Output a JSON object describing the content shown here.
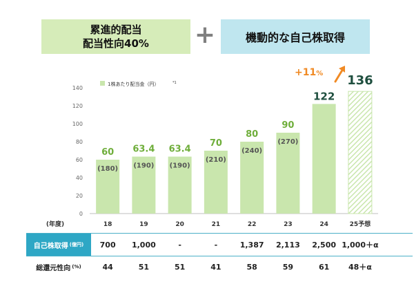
{
  "header": {
    "left_line1": "累進的配当",
    "left_line2": "配当性向40%",
    "plus": "+",
    "right": "機動的な自己株取得"
  },
  "chart_data": {
    "type": "bar",
    "categories": [
      "18",
      "19",
      "20",
      "21",
      "22",
      "23",
      "24",
      "25予想"
    ],
    "series": [
      {
        "name": "1株あたり配当金（円）",
        "values": [
          60,
          63.4,
          63.4,
          70,
          80,
          90,
          122,
          136
        ]
      }
    ],
    "value_labels": [
      "60",
      "63.4",
      "63.4",
      "70",
      "80",
      "90",
      "122",
      "136"
    ],
    "paren_labels": [
      "(180)",
      "(190)",
      "(190)",
      "(210)",
      "(240)",
      "(270)",
      "",
      ""
    ],
    "forecast_category": "25予想",
    "ylim": [
      0,
      140
    ],
    "yticks": [
      0,
      20,
      40,
      60,
      80,
      100,
      120,
      140
    ],
    "legend": {
      "label": "1株あたり配当金（円）",
      "note": "*1",
      "position": "top-left"
    },
    "annotation": {
      "text_main": "+11",
      "text_unit": "%"
    },
    "xaxis_label": "(年度)",
    "colors": {
      "bar": "#c9e6ad",
      "value_light": "#6fae3b",
      "value_dark": "#1f4f3f",
      "paren": "#555555",
      "arrow": "#f08a24"
    }
  },
  "table": {
    "rows": [
      {
        "label": "自己株取得",
        "unit": "(億円)",
        "values": [
          "700",
          "1,000",
          "-",
          "-",
          "1,387",
          "2,113",
          "2,500",
          "1,000＋α"
        ]
      },
      {
        "label": "総還元性向",
        "unit": "(%)",
        "values": [
          "44",
          "51",
          "51",
          "41",
          "58",
          "59",
          "61",
          "48＋α"
        ]
      }
    ]
  }
}
